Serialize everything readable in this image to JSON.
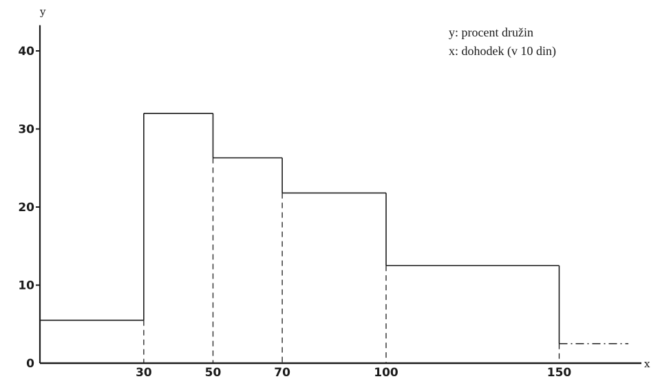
{
  "chart_data": {
    "type": "histogram",
    "xlabel": "x",
    "ylabel": "y",
    "legend": [
      "y: procent družin",
      "x: dohodek (v 10 din)"
    ],
    "legend_position": "top-right",
    "grid": false,
    "xlim": [
      0,
      180
    ],
    "ylim": [
      0,
      44
    ],
    "y_ticks": [
      "0",
      "10",
      "20",
      "30",
      "40"
    ],
    "x_ticks": [
      "30",
      "50",
      "70",
      "100",
      "150"
    ],
    "bins": [
      {
        "from": 0,
        "to": 30,
        "value": 5.5
      },
      {
        "from": 30,
        "to": 50,
        "value": 32
      },
      {
        "from": 50,
        "to": 70,
        "value": 26.3
      },
      {
        "from": 70,
        "to": 100,
        "value": 21.8
      },
      {
        "from": 100,
        "to": 150,
        "value": 12.5
      },
      {
        "from": 150,
        "to": 170,
        "value": 2.5,
        "style": "dash-dot"
      }
    ]
  }
}
